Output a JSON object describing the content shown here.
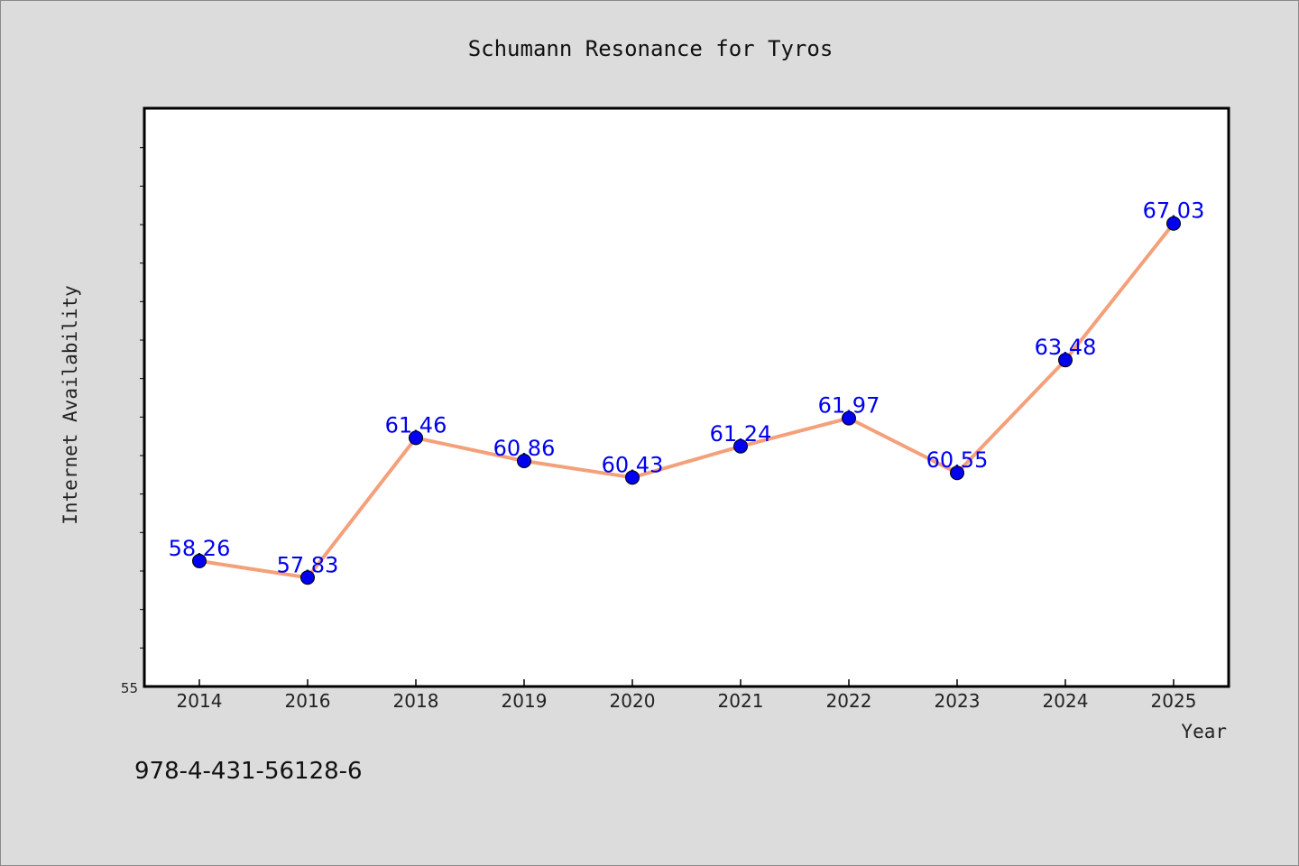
{
  "chart_data": {
    "type": "line",
    "title": "Schumann Resonance for Tyros",
    "xlabel": "Year",
    "ylabel": "Internet Availability",
    "categories": [
      "2014",
      "2016",
      "2018",
      "2019",
      "2020",
      "2021",
      "2022",
      "2023",
      "2024",
      "2025"
    ],
    "series": [
      {
        "values": [
          58.26,
          57.83,
          61.46,
          60.86,
          60.43,
          61.24,
          61.97,
          60.55,
          63.48,
          67.03
        ],
        "labels": [
          "58.26",
          "57.83",
          "61.46",
          "60.86",
          "60.43",
          "61.24",
          "61.97",
          "60.55",
          "63.48",
          "67.03"
        ],
        "line_color": "#f4a07a",
        "marker_color": "#0000ee"
      }
    ],
    "ylim": [
      55,
      70
    ],
    "y_tick_labels": [
      "55"
    ],
    "grid": false,
    "legend": "none",
    "plot_background": "#ffffff",
    "page_background": "#dcdcdc"
  },
  "footer": {
    "isbn": "978-4-431-56128-6"
  }
}
